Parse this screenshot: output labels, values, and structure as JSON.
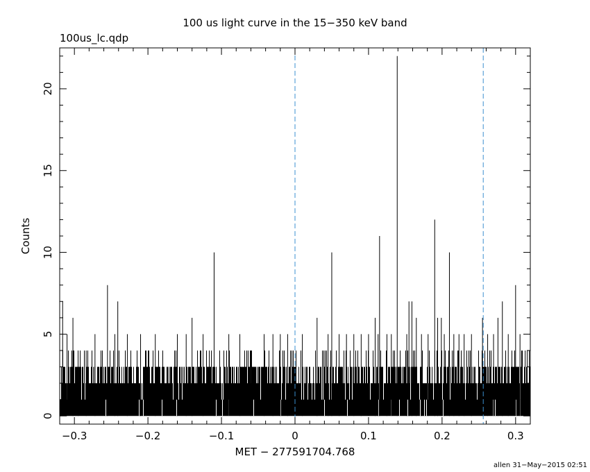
{
  "chart_data": {
    "type": "bar",
    "title": "100 us light curve in the 15−350 keV band",
    "subtitle": "100us_lc.qdp",
    "xlabel": "MET − 277591704.768",
    "ylabel": "Counts",
    "footer": "allen 31−May−2015 02:51",
    "xlim": [
      -0.32,
      0.32
    ],
    "ylim": [
      -0.5,
      22.5
    ],
    "x_ticks": [
      {
        "value": -0.3,
        "label": "−0.3"
      },
      {
        "value": -0.2,
        "label": "−0.2"
      },
      {
        "value": -0.1,
        "label": "−0.1"
      },
      {
        "value": 0,
        "label": "0"
      },
      {
        "value": 0.1,
        "label": "0.1"
      },
      {
        "value": 0.2,
        "label": "0.2"
      },
      {
        "value": 0.3,
        "label": "0.3"
      }
    ],
    "y_ticks": [
      {
        "value": 0,
        "label": "0"
      },
      {
        "value": 5,
        "label": "5"
      },
      {
        "value": 10,
        "label": "10"
      },
      {
        "value": 15,
        "label": "15"
      },
      {
        "value": 20,
        "label": "20"
      }
    ],
    "bin_width": 0.0001,
    "baseline_level": 3,
    "baseline_noise_levels": [
      0,
      1,
      2,
      3
    ],
    "spikes": [
      {
        "x": -0.316,
        "y": 7
      },
      {
        "x": -0.31,
        "y": 5
      },
      {
        "x": -0.302,
        "y": 6
      },
      {
        "x": -0.295,
        "y": 4
      },
      {
        "x": -0.284,
        "y": 4
      },
      {
        "x": -0.272,
        "y": 5
      },
      {
        "x": -0.255,
        "y": 8
      },
      {
        "x": -0.245,
        "y": 5
      },
      {
        "x": -0.241,
        "y": 7
      },
      {
        "x": -0.228,
        "y": 5
      },
      {
        "x": -0.21,
        "y": 5
      },
      {
        "x": -0.19,
        "y": 5
      },
      {
        "x": -0.16,
        "y": 5
      },
      {
        "x": -0.148,
        "y": 5
      },
      {
        "x": -0.14,
        "y": 6
      },
      {
        "x": -0.125,
        "y": 5
      },
      {
        "x": -0.11,
        "y": 10
      },
      {
        "x": -0.09,
        "y": 5
      },
      {
        "x": -0.075,
        "y": 5
      },
      {
        "x": -0.06,
        "y": 4
      },
      {
        "x": -0.042,
        "y": 5
      },
      {
        "x": -0.03,
        "y": 5
      },
      {
        "x": -0.02,
        "y": 5
      },
      {
        "x": -0.01,
        "y": 5
      },
      {
        "x": 0.01,
        "y": 5
      },
      {
        "x": 0.03,
        "y": 6
      },
      {
        "x": 0.045,
        "y": 5
      },
      {
        "x": 0.05,
        "y": 10
      },
      {
        "x": 0.06,
        "y": 5
      },
      {
        "x": 0.07,
        "y": 5
      },
      {
        "x": 0.08,
        "y": 5
      },
      {
        "x": 0.09,
        "y": 5
      },
      {
        "x": 0.1,
        "y": 5
      },
      {
        "x": 0.109,
        "y": 6
      },
      {
        "x": 0.113,
        "y": 5
      },
      {
        "x": 0.115,
        "y": 11
      },
      {
        "x": 0.125,
        "y": 5
      },
      {
        "x": 0.131,
        "y": 5
      },
      {
        "x": 0.139,
        "y": 22
      },
      {
        "x": 0.152,
        "y": 5
      },
      {
        "x": 0.155,
        "y": 7
      },
      {
        "x": 0.159,
        "y": 7
      },
      {
        "x": 0.165,
        "y": 6
      },
      {
        "x": 0.172,
        "y": 5
      },
      {
        "x": 0.181,
        "y": 5
      },
      {
        "x": 0.19,
        "y": 12
      },
      {
        "x": 0.194,
        "y": 6
      },
      {
        "x": 0.199,
        "y": 6
      },
      {
        "x": 0.203,
        "y": 5
      },
      {
        "x": 0.21,
        "y": 10
      },
      {
        "x": 0.216,
        "y": 5
      },
      {
        "x": 0.223,
        "y": 5
      },
      {
        "x": 0.23,
        "y": 5
      },
      {
        "x": 0.24,
        "y": 5
      },
      {
        "x": 0.255,
        "y": 6
      },
      {
        "x": 0.262,
        "y": 5
      },
      {
        "x": 0.27,
        "y": 5
      },
      {
        "x": 0.276,
        "y": 6
      },
      {
        "x": 0.282,
        "y": 7
      },
      {
        "x": 0.29,
        "y": 5
      },
      {
        "x": 0.3,
        "y": 8
      },
      {
        "x": 0.306,
        "y": 5
      },
      {
        "x": 0.313,
        "y": 4
      }
    ],
    "vlines": [
      0,
      0.256
    ],
    "vline_color": "#3a8fd0",
    "line_color": "#000000"
  }
}
